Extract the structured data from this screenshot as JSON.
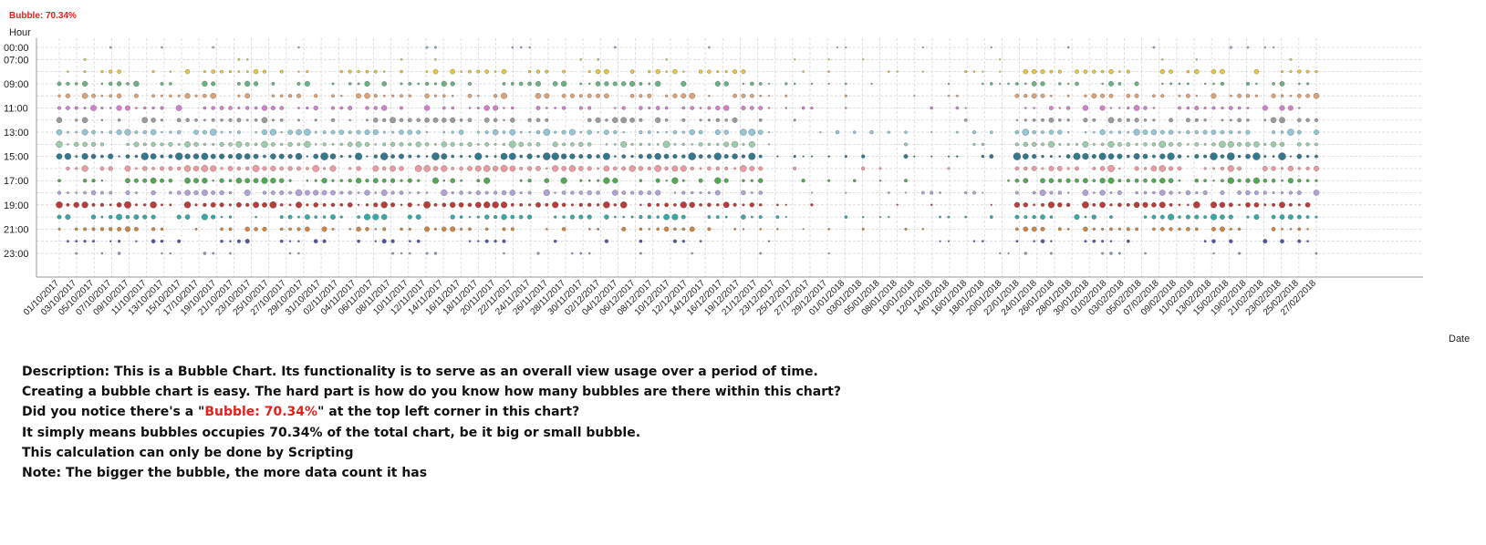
{
  "stat_text": "Bubble: 70.34%",
  "chart_data": {
    "type": "scatter",
    "xlabel": "Date",
    "ylabel": "Hour",
    "x_tick_labels": [
      "01/10/2017",
      "03/10/2017",
      "05/10/2017",
      "07/10/2017",
      "09/10/2017",
      "11/10/2017",
      "13/10/2017",
      "15/10/2017",
      "17/10/2017",
      "19/10/2017",
      "21/10/2017",
      "23/10/2017",
      "25/10/2017",
      "27/10/2017",
      "29/10/2017",
      "31/10/2017",
      "02/11/2017",
      "04/11/2017",
      "06/11/2017",
      "08/11/2017",
      "10/11/2017",
      "12/11/2017",
      "14/11/2017",
      "16/11/2017",
      "18/11/2017",
      "20/11/2017",
      "22/11/2017",
      "24/11/2017",
      "26/11/2017",
      "28/11/2017",
      "30/11/2017",
      "02/12/2017",
      "04/12/2017",
      "06/12/2017",
      "08/12/2017",
      "10/12/2017",
      "12/12/2017",
      "14/12/2017",
      "16/12/2017",
      "19/12/2017",
      "21/12/2017",
      "23/12/2017",
      "25/12/2017",
      "27/12/2017",
      "29/12/2017",
      "01/01/2018",
      "03/01/2018",
      "05/01/2018",
      "08/01/2018",
      "10/01/2018",
      "12/01/2018",
      "14/01/2018",
      "16/01/2018",
      "18/01/2018",
      "20/01/2018",
      "22/01/2018",
      "24/01/2018",
      "26/01/2018",
      "28/01/2018",
      "30/01/2018",
      "01/02/2018",
      "03/02/2018",
      "05/02/2018",
      "07/02/2018",
      "09/02/2018",
      "11/02/2018",
      "13/02/2018",
      "15/02/2018",
      "19/02/2018",
      "21/02/2018",
      "23/02/2018",
      "25/02/2018",
      "27/02/2018"
    ],
    "y_tick_labels": [
      "00:00",
      "07:00",
      "09:00",
      "11:00",
      "13:00",
      "15:00",
      "17:00",
      "19:00",
      "21:00",
      "23:00"
    ],
    "y_rows": [
      "00:00",
      "07:00",
      "08:00",
      "09:00",
      "10:00",
      "11:00",
      "12:00",
      "13:00",
      "14:00",
      "15:00",
      "16:00",
      "17:00",
      "18:00",
      "19:00",
      "20:00",
      "21:00",
      "22:00",
      "23:00"
    ],
    "row_colors": [
      "#8aa0c8",
      "#c8c850",
      "#e8c020",
      "#5aa878",
      "#d89868",
      "#d070c8",
      "#909090",
      "#88c0d0",
      "#90c8a0",
      "#206880",
      "#e89098",
      "#40a040",
      "#a898d0",
      "#b02828",
      "#20a0a0",
      "#c87830",
      "#404898",
      "#8090b0"
    ],
    "row_intensity": [
      0.15,
      0.12,
      0.55,
      0.65,
      0.7,
      0.7,
      0.7,
      0.85,
      0.85,
      1.0,
      0.85,
      0.8,
      0.8,
      0.9,
      0.75,
      0.6,
      0.45,
      0.2
    ],
    "x_count": 148,
    "grid": true,
    "bubble_sizes_encode": "data count"
  },
  "description": {
    "line1": "Description: This is a Bubble Chart. Its functionality is to serve as an overall view usage over a period of time.",
    "line2": "Creating a bubble chart is easy. The hard part is how do you know how many bubbles are there within this chart?",
    "line3_pre": "Did you notice there's a \"",
    "line3_red": "Bubble: 70.34%",
    "line3_post": "\" at the top left corner in this chart?",
    "line4": "It simply means bubbles occupies 70.34% of the total chart, be it big or small bubble.",
    "line5": "This calculation can only be done by Scripting",
    "line6": "Note: The bigger the bubble, the more data count it has"
  }
}
